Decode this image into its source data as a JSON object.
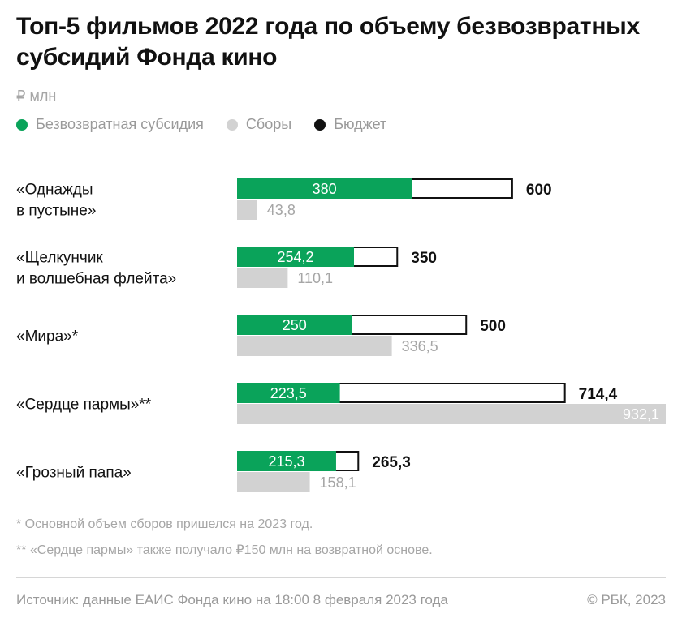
{
  "title": "Топ-5 фильмов 2022 года по объему безвозвратных субсидий Фонда кино",
  "unit": "₽ млн",
  "legend": [
    {
      "label": "Безвозвратная субсидия",
      "color": "#0aa35a"
    },
    {
      "label": "Сборы",
      "color": "#d2d2d2"
    },
    {
      "label": "Бюджет",
      "color": "#111111"
    }
  ],
  "chart_data": {
    "type": "bar",
    "orientation": "horizontal",
    "categories": [
      [
        "«Однажды",
        "в пустыне»"
      ],
      [
        "«Щелкунчик",
        "и волшебная флейта»"
      ],
      [
        "«Мира»*"
      ],
      [
        "«Сердце пармы»**"
      ],
      [
        "«Грозный папа»"
      ]
    ],
    "series": [
      {
        "name": "Безвозвратная субсидия",
        "color": "#0aa35a",
        "values": [
          380,
          254.2,
          250,
          223.5,
          215.3
        ],
        "labels": [
          "380",
          "254,2",
          "250",
          "223,5",
          "215,3"
        ]
      },
      {
        "name": "Бюджет",
        "color": "#111111",
        "values": [
          600,
          350,
          500,
          714.4,
          265.3
        ],
        "labels": [
          "600",
          "350",
          "500",
          "714,4",
          "265,3"
        ]
      },
      {
        "name": "Сборы",
        "color": "#d2d2d2",
        "values": [
          43.8,
          110.1,
          336.5,
          932.1,
          158.1
        ],
        "labels": [
          "43,8",
          "110,1",
          "336,5",
          "932,1",
          "158,1"
        ]
      }
    ],
    "xlim": [
      0,
      932.1
    ],
    "grid": false,
    "legend_position": "top-left"
  },
  "footnotes": [
    "* Основной объем сборов пришелся на 2023 год.",
    "** «Сердце пармы» также получало ₽150 млн на возвратной основе."
  ],
  "source": "Источник: данные ЕАИС Фонда кино на 18:00 8 февраля 2023 года",
  "copyright": "© РБК, 2023"
}
